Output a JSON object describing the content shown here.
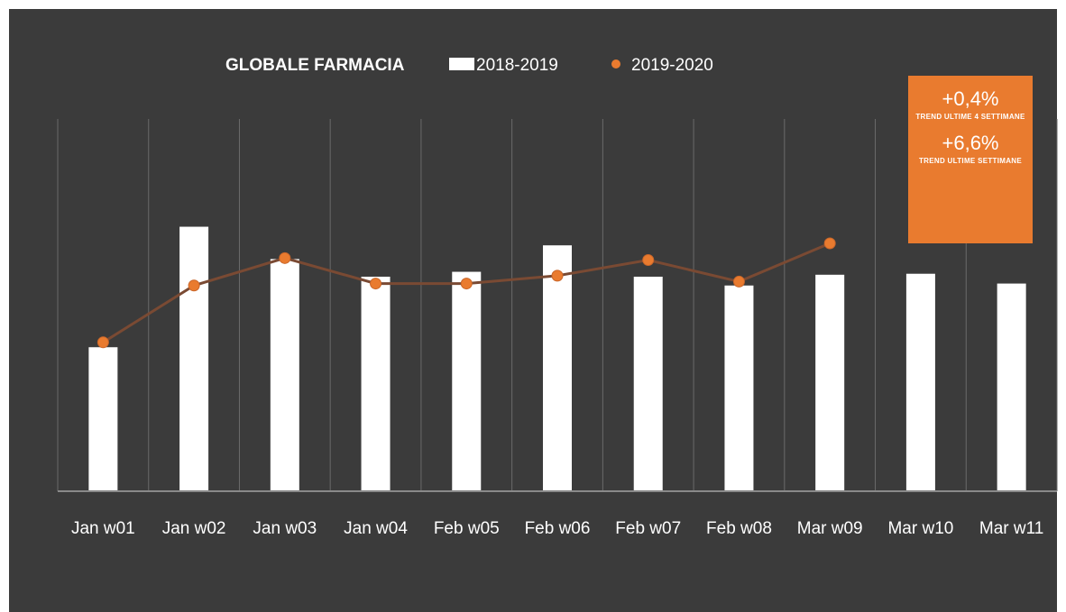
{
  "chart_data": {
    "type": "bar",
    "title": "GLOBALE FARMACIA",
    "categories": [
      "Jan w01",
      "Jan w02",
      "Jan w03",
      "Jan w04",
      "Feb w05",
      "Feb w06",
      "Feb w07",
      "Feb w08",
      "Mar w09",
      "Mar w10",
      "Mar w11"
    ],
    "series": [
      {
        "name": "2018-2019",
        "kind": "bar",
        "color": "#ffffff",
        "values": [
          147,
          270,
          237,
          219,
          224,
          251,
          219,
          210,
          221,
          222,
          212
        ]
      },
      {
        "name": "2019-2020",
        "kind": "line",
        "color": "#e97b2f",
        "line_color": "#7a4a33",
        "values": [
          152,
          210,
          238,
          212,
          212,
          220,
          236,
          214,
          253,
          null,
          null
        ]
      }
    ],
    "ylim": [
      0,
      380
    ],
    "grid": "vertical",
    "legend": "top",
    "background": "#3b3b3b"
  },
  "callout": {
    "value_1": "+0,4%",
    "caption_1": "TREND ULTIME 4 SETTIMANE",
    "value_2": "+6,6%",
    "caption_2": "TREND ULTIME SETTIMANE"
  }
}
